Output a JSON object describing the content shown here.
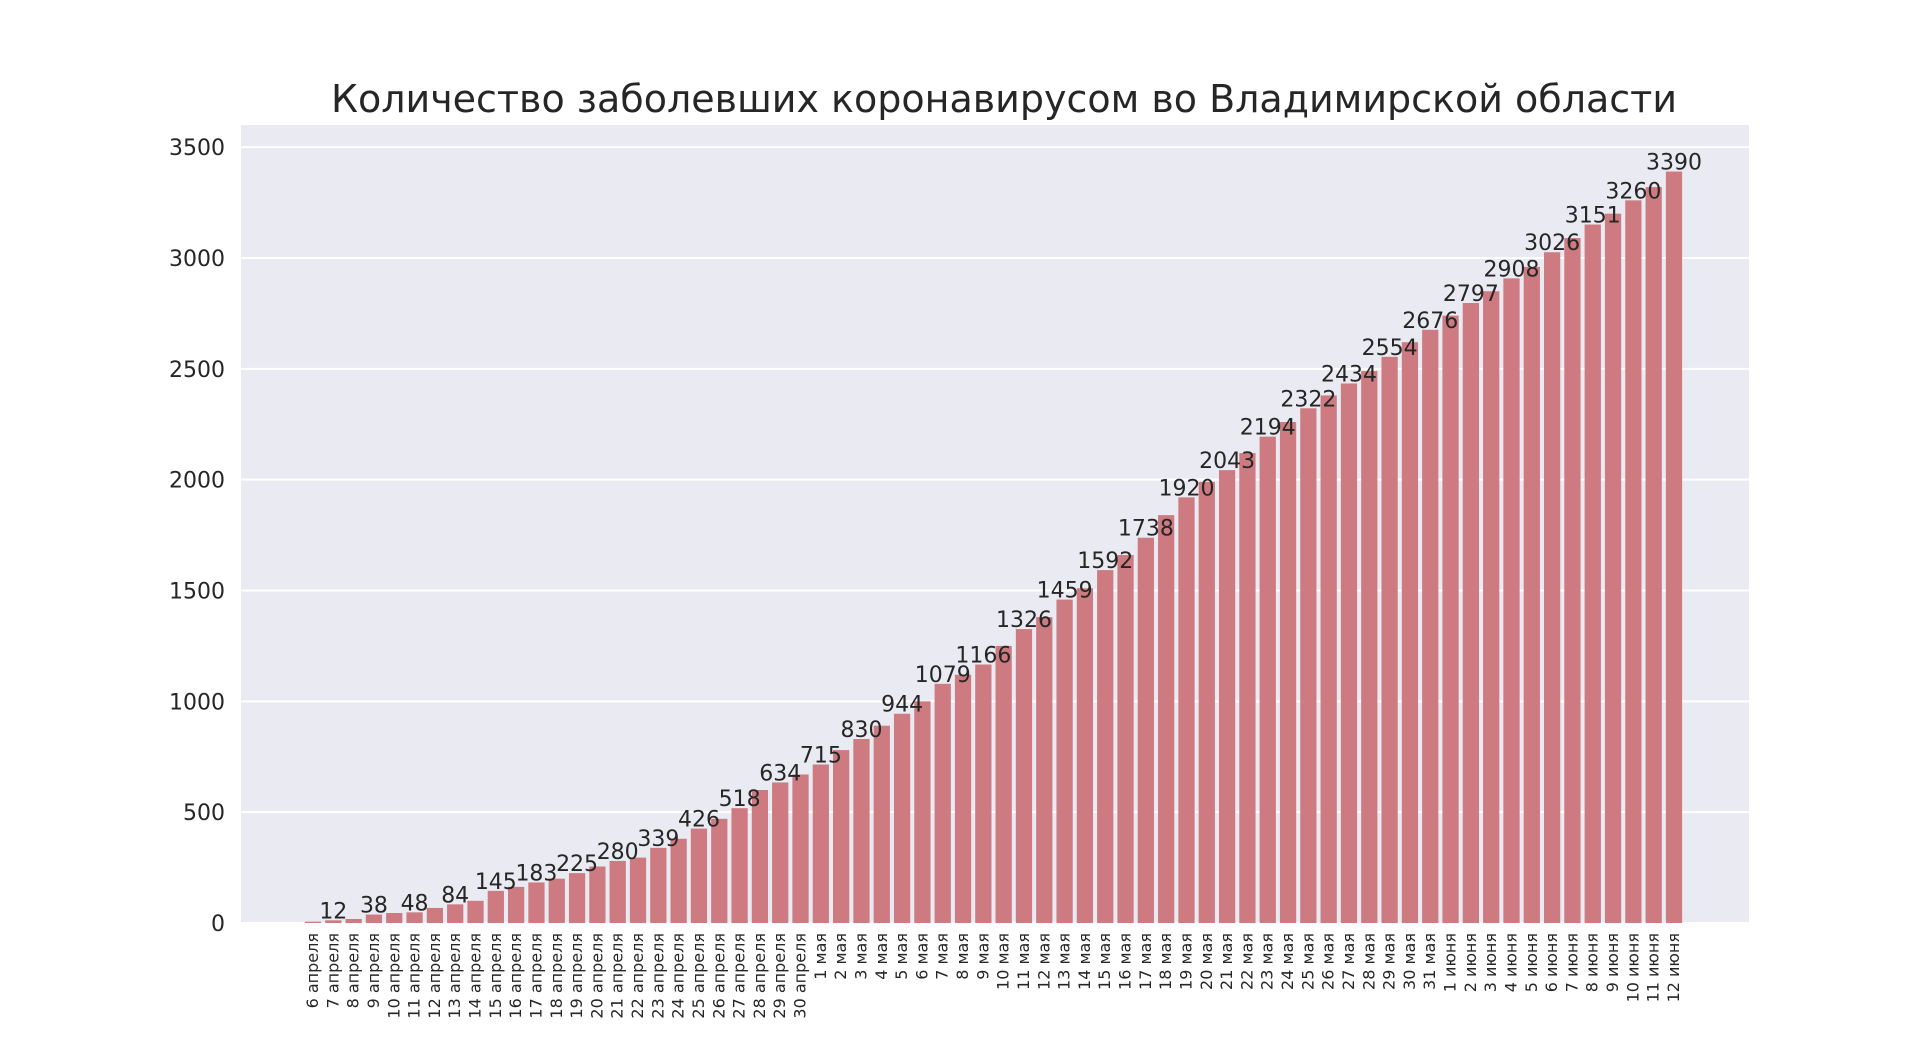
{
  "chart_data": {
    "type": "bar",
    "title": "Количество заболевших коронавирусом во Владимирской области",
    "xlabel": "",
    "ylabel": "",
    "ylim": [
      0,
      3600
    ],
    "yticks": [
      "0",
      "500",
      "1000",
      "1500",
      "2000",
      "2500",
      "3000",
      "3500"
    ],
    "grid": true,
    "bar_color": "#cd7a80",
    "background_color": "#eaeaf2",
    "categories": [
      "6 апреля",
      "7 апреля",
      "8 апреля",
      "9 апреля",
      "10 апреля",
      "11 апреля",
      "12 апреля",
      "13 апреля",
      "14 апреля",
      "15 апреля",
      "16 апреля",
      "17 апреля",
      "18 апреля",
      "19 апреля",
      "20 апреля",
      "21 апреля",
      "22 апреля",
      "23 апреля",
      "24 апреля",
      "25 апреля",
      "26 апреля",
      "27 апреля",
      "28 апреля",
      "29 апреля",
      "30 апреля",
      "1 мая",
      "2 мая",
      "3 мая",
      "4 мая",
      "5 мая",
      "6 мая",
      "7 мая",
      "8 мая",
      "9 мая",
      "10 мая",
      "11 мая",
      "12 мая",
      "13 мая",
      "14 мая",
      "15 мая",
      "16 мая",
      "17 мая",
      "18 мая",
      "19 мая",
      "20 мая",
      "21 мая",
      "22 мая",
      "23 мая",
      "24 мая",
      "25 мая",
      "26 мая",
      "27 мая",
      "28 мая",
      "29 мая",
      "30 мая",
      "31 мая",
      "1 июня",
      "2 июня",
      "3 июня",
      "4 июня",
      "5 июня",
      "6 июня",
      "7 июня",
      "8 июня",
      "9 июня",
      "10 июня",
      "11 июня",
      "12 июня"
    ],
    "values": [
      6,
      12,
      18,
      38,
      45,
      48,
      68,
      84,
      100,
      145,
      163,
      183,
      200,
      225,
      255,
      280,
      295,
      339,
      380,
      426,
      470,
      518,
      600,
      634,
      670,
      715,
      780,
      830,
      890,
      944,
      1000,
      1079,
      1120,
      1166,
      1250,
      1326,
      1380,
      1459,
      1510,
      1592,
      1660,
      1738,
      1840,
      1920,
      1990,
      2043,
      2120,
      2194,
      2260,
      2322,
      2380,
      2434,
      2490,
      2554,
      2620,
      2676,
      2740,
      2797,
      2850,
      2908,
      2960,
      3026,
      3090,
      3151,
      3200,
      3260,
      3320,
      3390
    ],
    "data_labels": [
      {
        "index": 1,
        "text": "12"
      },
      {
        "index": 3,
        "text": "38"
      },
      {
        "index": 5,
        "text": "48"
      },
      {
        "index": 7,
        "text": "84"
      },
      {
        "index": 9,
        "text": "145"
      },
      {
        "index": 11,
        "text": "183"
      },
      {
        "index": 13,
        "text": "225"
      },
      {
        "index": 15,
        "text": "280"
      },
      {
        "index": 17,
        "text": "339"
      },
      {
        "index": 19,
        "text": "426"
      },
      {
        "index": 21,
        "text": "518"
      },
      {
        "index": 23,
        "text": "634"
      },
      {
        "index": 25,
        "text": "715"
      },
      {
        "index": 27,
        "text": "830"
      },
      {
        "index": 29,
        "text": "944"
      },
      {
        "index": 31,
        "text": "1079"
      },
      {
        "index": 33,
        "text": "1166"
      },
      {
        "index": 35,
        "text": "1326"
      },
      {
        "index": 37,
        "text": "1459"
      },
      {
        "index": 39,
        "text": "1592"
      },
      {
        "index": 41,
        "text": "1738"
      },
      {
        "index": 43,
        "text": "1920"
      },
      {
        "index": 45,
        "text": "2043"
      },
      {
        "index": 47,
        "text": "2194"
      },
      {
        "index": 49,
        "text": "2322"
      },
      {
        "index": 51,
        "text": "2434"
      },
      {
        "index": 53,
        "text": "2554"
      },
      {
        "index": 55,
        "text": "2676"
      },
      {
        "index": 57,
        "text": "2797"
      },
      {
        "index": 59,
        "text": "2908"
      },
      {
        "index": 61,
        "text": "3026"
      },
      {
        "index": 63,
        "text": "3151"
      },
      {
        "index": 65,
        "text": "3260"
      },
      {
        "index": 67,
        "text": "3390"
      }
    ]
  }
}
